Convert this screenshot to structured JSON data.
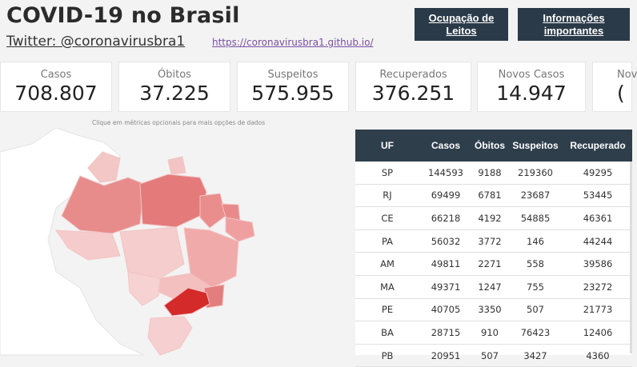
{
  "header": {
    "title": "COVID-19 no Brasil",
    "twitter": "Twitter: @coronavirusbra1",
    "link": "https://coronavirusbra1.github.io/",
    "btn_leitos": "Ocupação de Leitos",
    "btn_info": "Informações importantes"
  },
  "cards": [
    {
      "label": "Casos",
      "value": "708.807"
    },
    {
      "label": "Óbitos",
      "value": "37.225"
    },
    {
      "label": "Suspeitos",
      "value": "575.955"
    },
    {
      "label": "Recuperados",
      "value": "376.251"
    },
    {
      "label": "Novos Casos",
      "value": "14.947"
    },
    {
      "label": "Nov",
      "value": "("
    }
  ],
  "hint": "Clique em métricas opcionais para mais opções de dados",
  "colors": {
    "header_bg": "#2f3e4b",
    "button_bg": "#2a3a48",
    "map_dark": "#d42a2a",
    "map_mid": "#e98a8a",
    "map_light": "#f6c9c9"
  },
  "table": {
    "headers": [
      "UF",
      "Casos",
      "Óbitos",
      "Suspeitos",
      "Recuperado"
    ],
    "rows": [
      [
        "SP",
        "144593",
        "9188",
        "219360",
        "49295"
      ],
      [
        "RJ",
        "69499",
        "6781",
        "23687",
        "53445"
      ],
      [
        "CE",
        "66218",
        "4192",
        "54885",
        "46361"
      ],
      [
        "PA",
        "56032",
        "3772",
        "146",
        "44244"
      ],
      [
        "AM",
        "49811",
        "2271",
        "558",
        "39586"
      ],
      [
        "MA",
        "49371",
        "1247",
        "755",
        "23272"
      ],
      [
        "PE",
        "40705",
        "3350",
        "507",
        "21773"
      ],
      [
        "BA",
        "28715",
        "910",
        "76423",
        "12406"
      ],
      [
        "PB",
        "20951",
        "507",
        "3427",
        "4360"
      ]
    ]
  }
}
